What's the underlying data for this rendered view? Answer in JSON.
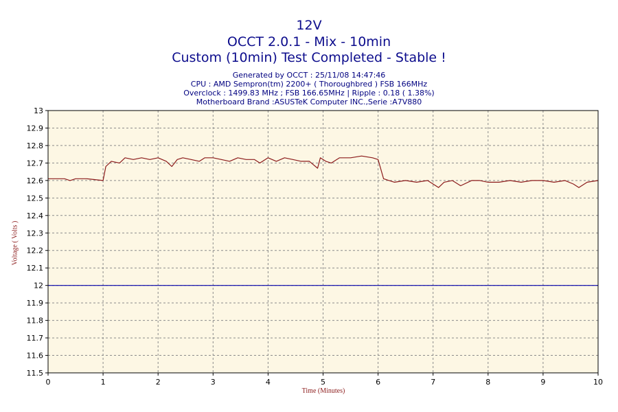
{
  "header": {
    "title": "12V",
    "subtitle": "OCCT 2.0.1 - Mix - 10min",
    "status": "Custom (10min) Test Completed - Stable !"
  },
  "info": {
    "generated": "Generated by OCCT : 25/11/08 14:47:46",
    "cpu": "CPU : AMD Sempron(tm) 2200+ ( Thoroughbred ) FSB 166MHz",
    "overclock": "Overclock : 1499.83 MHz ; FSB 166.65MHz | Ripple : 0.18 ( 1.38%)",
    "motherboard": "Motherboard Brand :ASUSTeK Computer INC.,Serie :A7V880"
  },
  "colors": {
    "plot_background": "#fdf7e4",
    "grid": "#8a8a8a",
    "series": "#8b1a1a",
    "reference": "#0000aa",
    "title": "#0c0c8c",
    "axis_label": "#8b1a1a"
  },
  "chart_data": {
    "type": "line",
    "xlabel": "Time (Minutes)",
    "ylabel": "Voltage ( Volts )",
    "xlim": [
      0,
      10
    ],
    "ylim": [
      11.5,
      13
    ],
    "x_ticks": [
      "0",
      "1",
      "2",
      "3",
      "4",
      "5",
      "6",
      "7",
      "8",
      "9",
      "10"
    ],
    "y_ticks": [
      "11.5",
      "11.6",
      "11.7",
      "11.8",
      "11.9",
      "12",
      "12.1",
      "12.2",
      "12.3",
      "12.4",
      "12.5",
      "12.6",
      "12.7",
      "12.8",
      "12.9",
      "13"
    ],
    "grid": true,
    "reference_line": 12.0,
    "series": [
      {
        "x": [
          0,
          0.3,
          0.4,
          0.5,
          0.7,
          1.0,
          1.05,
          1.15,
          1.3,
          1.4,
          1.55,
          1.7,
          1.85,
          2.0,
          2.15,
          2.25,
          2.35,
          2.45,
          2.6,
          2.75,
          2.85,
          3.0,
          3.15,
          3.3,
          3.45,
          3.6,
          3.75,
          3.85,
          4.0,
          4.15,
          4.3,
          4.45,
          4.6,
          4.75,
          4.9,
          4.95,
          5.05,
          5.15,
          5.3,
          5.5,
          5.7,
          5.9,
          6.0,
          6.1,
          6.2,
          6.3,
          6.5,
          6.7,
          6.9,
          7.0,
          7.1,
          7.2,
          7.35,
          7.5,
          7.7,
          7.85,
          8.0,
          8.2,
          8.4,
          8.6,
          8.8,
          9.0,
          9.2,
          9.4,
          9.55,
          9.65,
          9.8,
          10.0
        ],
        "values": [
          12.61,
          12.61,
          12.6,
          12.61,
          12.61,
          12.6,
          12.68,
          12.71,
          12.7,
          12.73,
          12.72,
          12.73,
          12.72,
          12.73,
          12.71,
          12.68,
          12.72,
          12.73,
          12.72,
          12.71,
          12.73,
          12.73,
          12.72,
          12.71,
          12.73,
          12.72,
          12.72,
          12.7,
          12.73,
          12.71,
          12.73,
          12.72,
          12.71,
          12.71,
          12.67,
          12.73,
          12.71,
          12.7,
          12.73,
          12.73,
          12.74,
          12.73,
          12.72,
          12.61,
          12.6,
          12.59,
          12.6,
          12.59,
          12.6,
          12.58,
          12.56,
          12.59,
          12.6,
          12.57,
          12.6,
          12.6,
          12.59,
          12.59,
          12.6,
          12.59,
          12.6,
          12.6,
          12.59,
          12.6,
          12.58,
          12.56,
          12.59,
          12.6
        ]
      }
    ]
  }
}
